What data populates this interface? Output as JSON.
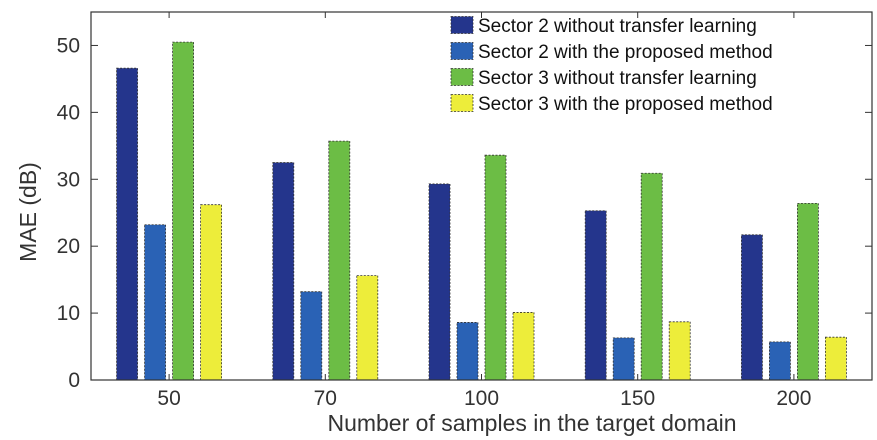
{
  "chart_data": {
    "type": "bar",
    "title": "",
    "xlabel": "Number of samples in the target domain",
    "ylabel": "MAE (dB)",
    "categories": [
      "50",
      "70",
      "100",
      "150",
      "200"
    ],
    "ylim": [
      0,
      55
    ],
    "yticks": [
      0,
      10,
      20,
      30,
      40,
      50
    ],
    "grid": false,
    "legend_position": "top-right",
    "series": [
      {
        "name": "Sector 2 without transfer learning",
        "color": "#24358c",
        "values": [
          46.6,
          32.5,
          29.3,
          25.3,
          21.7
        ]
      },
      {
        "name": "Sector 2 with the proposed method",
        "color": "#2a62b5",
        "values": [
          23.2,
          13.2,
          8.6,
          6.3,
          5.7
        ]
      },
      {
        "name": "Sector 3 without transfer learning",
        "color": "#6cbd45",
        "values": [
          50.5,
          35.7,
          33.6,
          30.9,
          26.4
        ]
      },
      {
        "name": "Sector 3 with the proposed method",
        "color": "#eded3a",
        "values": [
          26.2,
          15.6,
          10.1,
          8.7,
          6.4
        ]
      }
    ]
  }
}
